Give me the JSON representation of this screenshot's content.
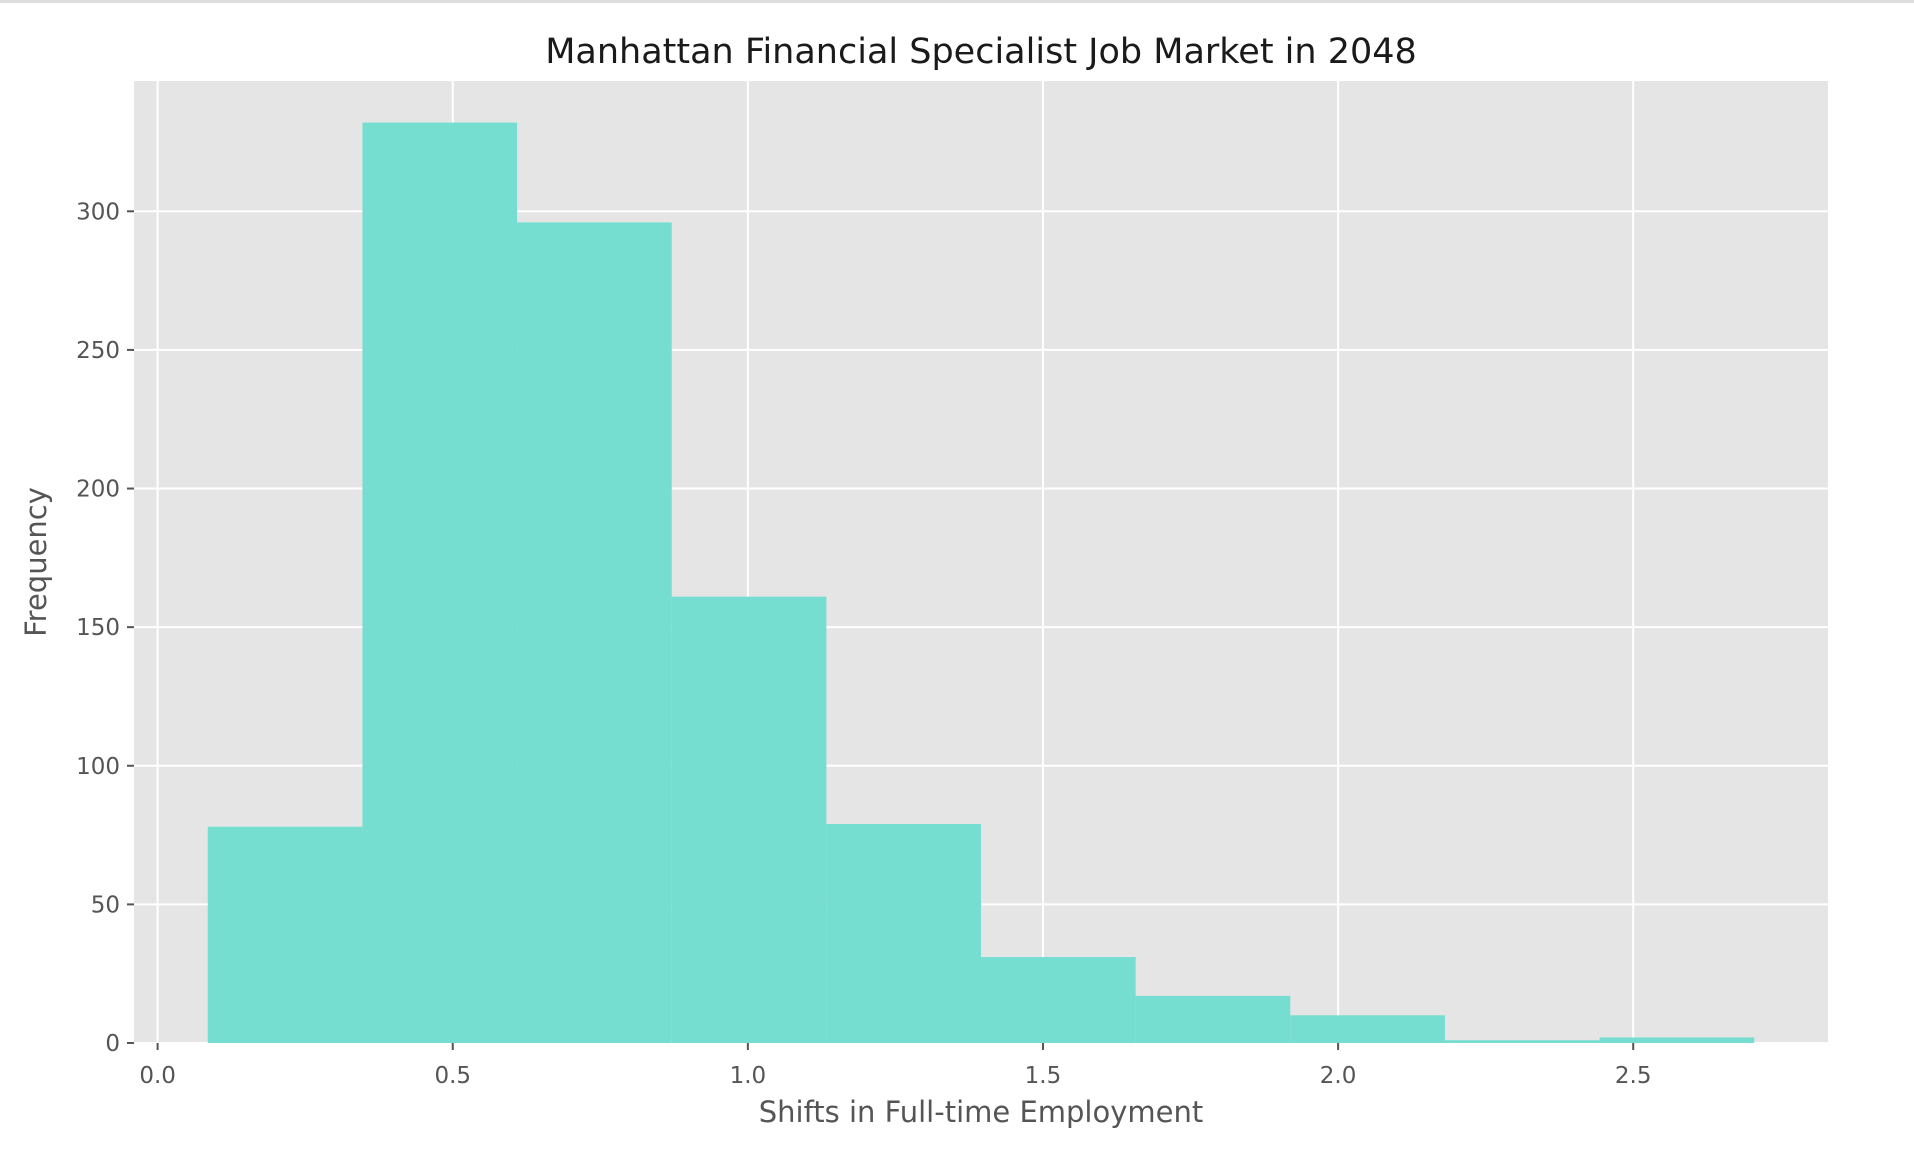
{
  "chart_data": {
    "type": "bar",
    "title": "Manhattan Financial Specialist Job Market in 2048",
    "xlabel": "Shifts in Full-time Employment",
    "ylabel": "Frequency",
    "xlim": [
      -0.04,
      2.83
    ],
    "ylim": [
      0,
      347
    ],
    "x_ticks": [
      0.0,
      0.5,
      1.0,
      1.5,
      2.0,
      2.5
    ],
    "x_tick_labels": [
      "0.0",
      "0.5",
      "1.0",
      "1.5",
      "2.0",
      "2.5"
    ],
    "y_ticks": [
      0,
      50,
      100,
      150,
      200,
      250,
      300
    ],
    "y_tick_labels": [
      "0",
      "50",
      "100",
      "150",
      "200",
      "250",
      "300"
    ],
    "bin_edges": [
      0.085,
      0.347,
      0.609,
      0.871,
      1.133,
      1.395,
      1.657,
      1.919,
      2.181,
      2.443,
      2.705
    ],
    "values": [
      78,
      332,
      296,
      161,
      79,
      31,
      17,
      10,
      1,
      2
    ],
    "grid": true,
    "colors": {
      "bar": "#75ded1",
      "plot_background": "#e5e5e5",
      "grid": "#ffffff"
    }
  }
}
